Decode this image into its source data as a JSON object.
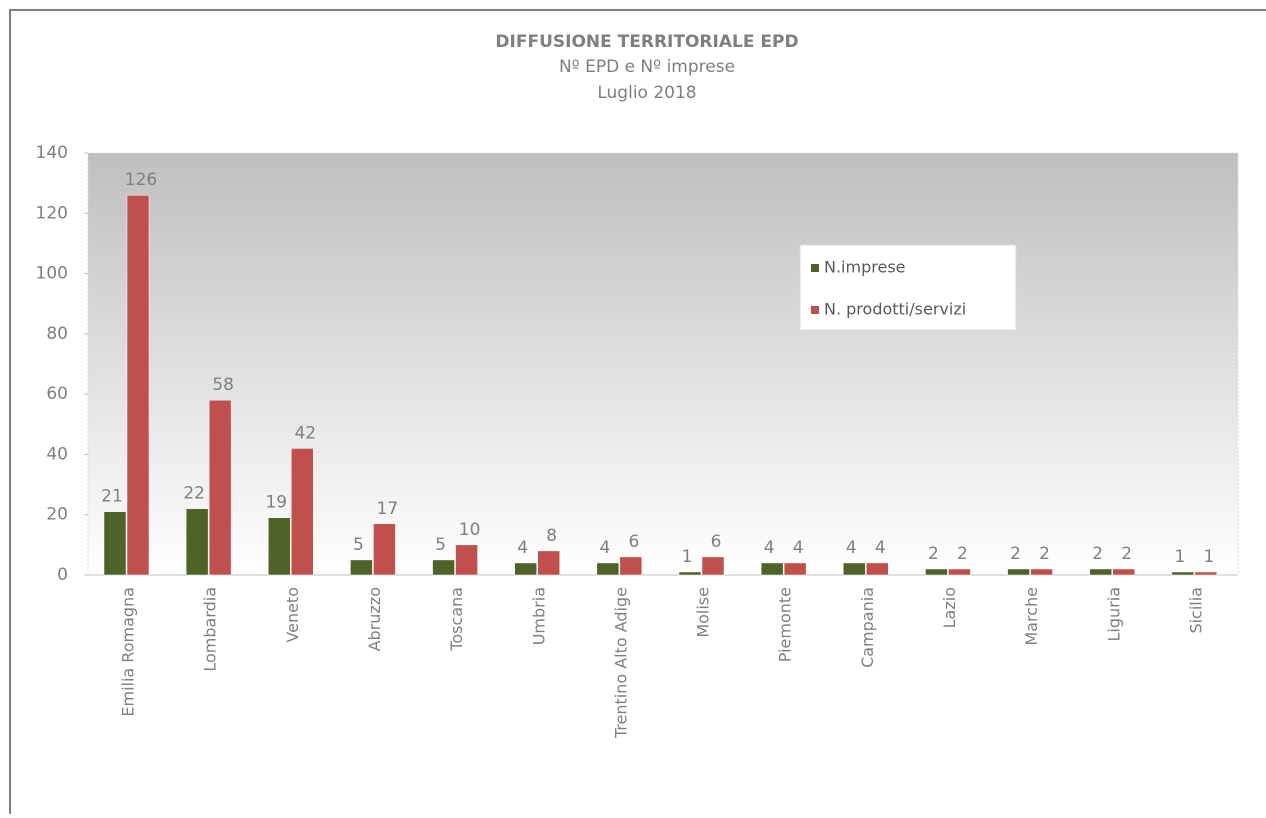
{
  "chart_data": {
    "type": "bar",
    "title": "DIFFUSIONE TERRITORIALE EPD",
    "subtitle": [
      "Nº EPD  e Nº imprese",
      "Luglio 2018"
    ],
    "categories": [
      "Emilia Romagna",
      "Lombardia",
      "Veneto",
      "Abruzzo",
      "Toscana",
      "Umbria",
      "Trentino Alto Adige",
      "Molise",
      "Piemonte",
      "Campania",
      "Lazio",
      "Marche",
      "Liguria",
      "Sicilia"
    ],
    "series": [
      {
        "name": "N.imprese",
        "color": "#4f6228",
        "values": [
          21,
          22,
          19,
          5,
          5,
          4,
          4,
          1,
          4,
          4,
          2,
          2,
          2,
          1
        ]
      },
      {
        "name": "N. prodotti/servizi",
        "color": "#c0504d",
        "values": [
          126,
          58,
          42,
          17,
          10,
          8,
          6,
          6,
          4,
          4,
          2,
          2,
          2,
          1
        ]
      }
    ],
    "ylim": [
      0,
      140
    ],
    "yticks": [
      0,
      20,
      40,
      60,
      80,
      100,
      120,
      140
    ]
  }
}
